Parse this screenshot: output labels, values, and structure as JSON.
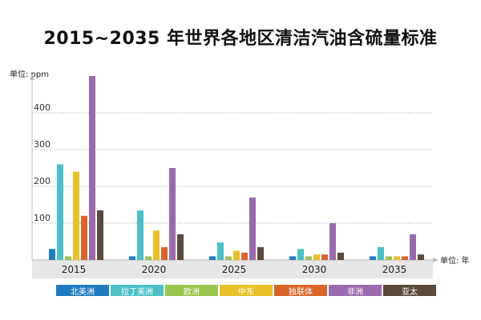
{
  "chart_data": {
    "type": "bar",
    "title": "2015~2035 年世界各地区清洁汽油含硫量标准",
    "ylabel": "单位: ppm",
    "xlabel": "单位: 年",
    "categories": [
      "2015",
      "2020",
      "2025",
      "2030",
      "2035"
    ],
    "yticks": [
      100,
      200,
      300,
      400
    ],
    "ylim": [
      0,
      500
    ],
    "grid": true,
    "legend_position": "bottom",
    "series": [
      {
        "name": "北美洲",
        "color": "#1f7bc2",
        "values": [
          30,
          10,
          10,
          10,
          10
        ]
      },
      {
        "name": "拉丁美洲",
        "color": "#4cc0c6",
        "values": [
          260,
          135,
          48,
          30,
          35
        ]
      },
      {
        "name": "欧洲",
        "color": "#9bc44f",
        "values": [
          10,
          10,
          10,
          10,
          10
        ]
      },
      {
        "name": "中东",
        "color": "#e8c02a",
        "values": [
          240,
          80,
          25,
          15,
          10
        ]
      },
      {
        "name": "独联体",
        "color": "#d9642a",
        "values": [
          120,
          35,
          20,
          15,
          10
        ]
      },
      {
        "name": "非洲",
        "color": "#9b6aac",
        "values": [
          500,
          250,
          170,
          100,
          70
        ]
      },
      {
        "name": "亚太",
        "color": "#5a4a3c",
        "values": [
          135,
          70,
          35,
          20,
          15
        ]
      }
    ]
  }
}
